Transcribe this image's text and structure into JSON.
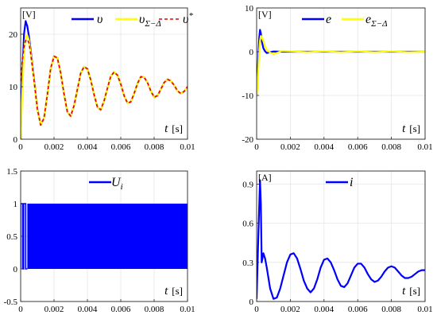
{
  "colors": {
    "blue": "#0000ff",
    "yellow": "#ffff00",
    "red_dashed": "#e60000",
    "grid": "#e6e6e6",
    "axis": "#262626"
  },
  "chart_data": [
    {
      "type": "line",
      "panel": "top-left",
      "unit_label": "[V]",
      "xlabel": "t",
      "xunit": "[s]",
      "xlim": [
        0,
        0.01
      ],
      "ylim": [
        0,
        25
      ],
      "xticks": [
        0,
        0.002,
        0.004,
        0.006,
        0.008,
        0.01
      ],
      "xtick_labels": [
        "0",
        "0.002",
        "0.004",
        "0.006",
        "0.008",
        "0.01"
      ],
      "yticks": [
        0,
        10,
        20
      ],
      "ytick_labels": [
        "0",
        "10",
        "20"
      ],
      "grid": true,
      "legend_position": "top",
      "series": [
        {
          "name": "v",
          "legend_text": "υ",
          "legend_sub": "",
          "legend_sup": "",
          "color": "#0000ff",
          "style": "solid",
          "x": [
            0,
            0.0001,
            0.0002,
            0.0003,
            0.0004,
            0.0005,
            0.0006,
            0.0008,
            0.001,
            0.0012,
            0.0014,
            0.0016,
            0.0018,
            0.002,
            0.0022,
            0.0024,
            0.0026,
            0.0028,
            0.003,
            0.0032,
            0.0034,
            0.0036,
            0.0038,
            0.004,
            0.0042,
            0.0044,
            0.0046,
            0.0048,
            0.005,
            0.0052,
            0.0054,
            0.0056,
            0.0058,
            0.006,
            0.0062,
            0.0064,
            0.0066,
            0.0068,
            0.007,
            0.0072,
            0.0074,
            0.0076,
            0.0078,
            0.008,
            0.0082,
            0.0084,
            0.0086,
            0.0088,
            0.009,
            0.0092,
            0.0094,
            0.0096,
            0.0098,
            0.01
          ],
          "y": [
            0,
            12,
            20,
            22.5,
            21.5,
            19.5,
            17,
            11.5,
            5.8,
            2.7,
            4,
            8.5,
            13.5,
            15.8,
            15.5,
            12.6,
            8.6,
            5.2,
            4.4,
            6.4,
            9.5,
            12.6,
            13.8,
            13.4,
            11.3,
            8.5,
            6.1,
            5.6,
            7.3,
            9.7,
            12,
            12.8,
            12.2,
            10.5,
            8.3,
            6.9,
            7.1,
            8.7,
            10.6,
            11.9,
            11.8,
            10.8,
            9.2,
            8,
            8.3,
            9.5,
            10.8,
            11.4,
            11.1,
            10.3,
            9.2,
            8.7,
            9.1,
            10
          ]
        },
        {
          "name": "v_sigma_delta",
          "legend_text": "υ",
          "legend_sub": "Σ−Δ",
          "legend_sup": "",
          "color": "#ffff00",
          "style": "solid",
          "x": [
            0,
            0.0001,
            0.0002,
            0.0003,
            0.0004,
            0.0005,
            0.0006,
            0.0008,
            0.001,
            0.0012,
            0.0014,
            0.0016,
            0.0018,
            0.002,
            0.0022,
            0.0024,
            0.0026,
            0.0028,
            0.003,
            0.0032,
            0.0034,
            0.0036,
            0.0038,
            0.004,
            0.0042,
            0.0044,
            0.0046,
            0.0048,
            0.005,
            0.0052,
            0.0054,
            0.0056,
            0.0058,
            0.006,
            0.0062,
            0.0064,
            0.0066,
            0.0068,
            0.007,
            0.0072,
            0.0074,
            0.0076,
            0.0078,
            0.008,
            0.0082,
            0.0084,
            0.0086,
            0.0088,
            0.009,
            0.0092,
            0.0094,
            0.0096,
            0.0098,
            0.01
          ],
          "y": [
            0,
            9,
            16.5,
            19.5,
            19.8,
            18.8,
            16.5,
            11.2,
            5.7,
            2.7,
            4,
            8.5,
            13.5,
            15.8,
            15.5,
            12.6,
            8.6,
            5.2,
            4.4,
            6.4,
            9.5,
            12.6,
            13.8,
            13.4,
            11.3,
            8.5,
            6.1,
            5.6,
            7.3,
            9.7,
            12,
            12.8,
            12.2,
            10.5,
            8.3,
            6.9,
            7.1,
            8.7,
            10.6,
            11.9,
            11.8,
            10.8,
            9.2,
            8,
            8.3,
            9.5,
            10.8,
            11.4,
            11.1,
            10.3,
            9.2,
            8.7,
            9.1,
            10
          ]
        },
        {
          "name": "v_star",
          "legend_text": "υ",
          "legend_sub": "",
          "legend_sup": "*",
          "color": "#e60000",
          "style": "dashed",
          "x": [
            0,
            0.0001,
            0.0002,
            0.0003,
            0.0004,
            0.0005,
            0.0006,
            0.0008,
            0.001,
            0.0012,
            0.0014,
            0.0016,
            0.0018,
            0.002,
            0.0022,
            0.0024,
            0.0026,
            0.0028,
            0.003,
            0.0032,
            0.0034,
            0.0036,
            0.0038,
            0.004,
            0.0042,
            0.0044,
            0.0046,
            0.0048,
            0.005,
            0.0052,
            0.0054,
            0.0056,
            0.0058,
            0.006,
            0.0062,
            0.0064,
            0.0066,
            0.0068,
            0.007,
            0.0072,
            0.0074,
            0.0076,
            0.0078,
            0.008,
            0.0082,
            0.0084,
            0.0086,
            0.0088,
            0.009,
            0.0092,
            0.0094,
            0.0096,
            0.0098,
            0.01
          ],
          "y": [
            11,
            15,
            17.5,
            18.8,
            19,
            18.3,
            16.3,
            11.2,
            5.7,
            2.7,
            4,
            8.5,
            13.5,
            15.8,
            15.5,
            12.6,
            8.6,
            5.2,
            4.4,
            6.4,
            9.5,
            12.6,
            13.8,
            13.4,
            11.3,
            8.5,
            6.1,
            5.6,
            7.3,
            9.7,
            12,
            12.8,
            12.2,
            10.5,
            8.3,
            6.9,
            7.1,
            8.7,
            10.6,
            11.9,
            11.8,
            10.8,
            9.2,
            8,
            8.3,
            9.5,
            10.8,
            11.4,
            11.1,
            10.3,
            9.2,
            8.7,
            9.1,
            10
          ]
        }
      ]
    },
    {
      "type": "line",
      "panel": "top-right",
      "unit_label": "[V]",
      "xlabel": "t",
      "xunit": "[s]",
      "xlim": [
        0,
        0.01
      ],
      "ylim": [
        -20,
        10
      ],
      "xticks": [
        0,
        0.002,
        0.004,
        0.006,
        0.008,
        0.01
      ],
      "xtick_labels": [
        "0",
        "0.002",
        "0.004",
        "0.006",
        "0.008",
        "0.01"
      ],
      "yticks": [
        -20,
        -10,
        0,
        10
      ],
      "ytick_labels": [
        "-20",
        "-10",
        "0",
        "10"
      ],
      "grid": true,
      "legend_position": "top",
      "series": [
        {
          "name": "e",
          "legend_text": "e",
          "legend_sub": "",
          "legend_sup": "",
          "color": "#0000ff",
          "style": "solid",
          "x": [
            0,
            5e-05,
            0.0001,
            0.00015,
            0.0002,
            0.00025,
            0.0003,
            0.0004,
            0.0005,
            0.0006,
            0.0008,
            0.001,
            0.0015,
            0.002,
            0.003,
            0.004,
            0.005,
            0.006,
            0.007,
            0.008,
            0.009,
            0.01
          ],
          "y": [
            -10,
            -6,
            -1,
            3,
            5,
            4.2,
            2.5,
            0.8,
            0.1,
            -0.3,
            -0.1,
            0.05,
            0,
            0,
            0,
            0,
            0,
            0,
            0,
            0,
            0,
            0
          ]
        },
        {
          "name": "e_sigma_delta",
          "legend_text": "e",
          "legend_sub": "Σ−Δ",
          "legend_sup": "",
          "color": "#ffff00",
          "style": "solid",
          "x": [
            0,
            5e-05,
            0.0001,
            0.00015,
            0.0002,
            0.00025,
            0.0003,
            0.0004,
            0.0005,
            0.0006,
            0.0008,
            0.001,
            0.0012,
            0.0015,
            0.002,
            0.003,
            0.004,
            0.005,
            0.006,
            0.007,
            0.008,
            0.009,
            0.01
          ],
          "y": [
            -10,
            -8,
            -4,
            0,
            2.5,
            3.6,
            3.3,
            2.4,
            1.2,
            0.4,
            -0.2,
            -0.5,
            -0.3,
            0.2,
            0.1,
            -0.1,
            0.1,
            -0.1,
            0.1,
            -0.1,
            0.1,
            -0.1,
            0
          ]
        }
      ]
    },
    {
      "type": "line",
      "panel": "bottom-left",
      "unit_label": "",
      "xlabel": "t",
      "xunit": "[s]",
      "xlim": [
        0,
        0.01
      ],
      "ylim": [
        -0.5,
        1.5
      ],
      "xticks": [
        0,
        0.002,
        0.004,
        0.006,
        0.008,
        0.01
      ],
      "xtick_labels": [
        "0",
        "0.002",
        "0.004",
        "0.006",
        "0.008",
        "0.01"
      ],
      "yticks": [
        -0.5,
        0,
        0.5,
        1,
        1.5
      ],
      "ytick_labels": [
        "-0.5",
        "0",
        "0.5",
        "1",
        "1.5"
      ],
      "grid": true,
      "legend_position": "top",
      "switching": {
        "start": 0,
        "first_off": 0.00012,
        "gap_start": 0.00018,
        "gap_end": 0.0003,
        "dense_start": 0.0004,
        "end": 0.01,
        "low": 0,
        "high": 1
      },
      "series": [
        {
          "name": "U_i",
          "legend_text": "U",
          "legend_sub": "i",
          "legend_sup": "",
          "color": "#0000ff",
          "style": "solid"
        }
      ]
    },
    {
      "type": "line",
      "panel": "bottom-right",
      "unit_label": "[A]",
      "xlabel": "t",
      "xunit": "[s]",
      "xlim": [
        0,
        0.01
      ],
      "ylim": [
        0,
        1
      ],
      "xticks": [
        0,
        0.002,
        0.004,
        0.006,
        0.008,
        0.01
      ],
      "xtick_labels": [
        "0",
        "0.002",
        "0.004",
        "0.006",
        "0.008",
        "0.01"
      ],
      "yticks": [
        0,
        0.3,
        0.6,
        0.9
      ],
      "ytick_labels": [
        "0",
        "0.3",
        "0.6",
        "0.9"
      ],
      "grid": true,
      "legend_position": "top",
      "series": [
        {
          "name": "i",
          "legend_text": "i",
          "legend_sub": "",
          "legend_sup": "",
          "color": "#0000ff",
          "style": "solid",
          "x": [
            0,
            0.0001,
            0.0002,
            0.00025,
            0.0003,
            0.0004,
            0.0005,
            0.0006,
            0.0007,
            0.0008,
            0.001,
            0.0012,
            0.0014,
            0.0016,
            0.0018,
            0.002,
            0.0022,
            0.0024,
            0.0026,
            0.0028,
            0.003,
            0.0032,
            0.0034,
            0.0036,
            0.0038,
            0.004,
            0.0042,
            0.0044,
            0.0046,
            0.0048,
            0.005,
            0.0052,
            0.0054,
            0.0056,
            0.0058,
            0.006,
            0.0062,
            0.0064,
            0.0066,
            0.0068,
            0.007,
            0.0072,
            0.0074,
            0.0076,
            0.0078,
            0.008,
            0.0082,
            0.0084,
            0.0086,
            0.0088,
            0.009,
            0.0092,
            0.0094,
            0.0096,
            0.0098,
            0.01
          ],
          "y": [
            0.02,
            0.5,
            0.93,
            0.75,
            0.3,
            0.37,
            0.33,
            0.26,
            0.18,
            0.1,
            0.02,
            0.03,
            0.1,
            0.2,
            0.3,
            0.36,
            0.37,
            0.33,
            0.25,
            0.16,
            0.1,
            0.07,
            0.1,
            0.17,
            0.26,
            0.32,
            0.33,
            0.3,
            0.24,
            0.17,
            0.12,
            0.11,
            0.14,
            0.2,
            0.26,
            0.29,
            0.29,
            0.26,
            0.21,
            0.17,
            0.15,
            0.16,
            0.19,
            0.23,
            0.26,
            0.27,
            0.26,
            0.23,
            0.2,
            0.18,
            0.18,
            0.19,
            0.21,
            0.23,
            0.24,
            0.24
          ]
        }
      ]
    }
  ]
}
